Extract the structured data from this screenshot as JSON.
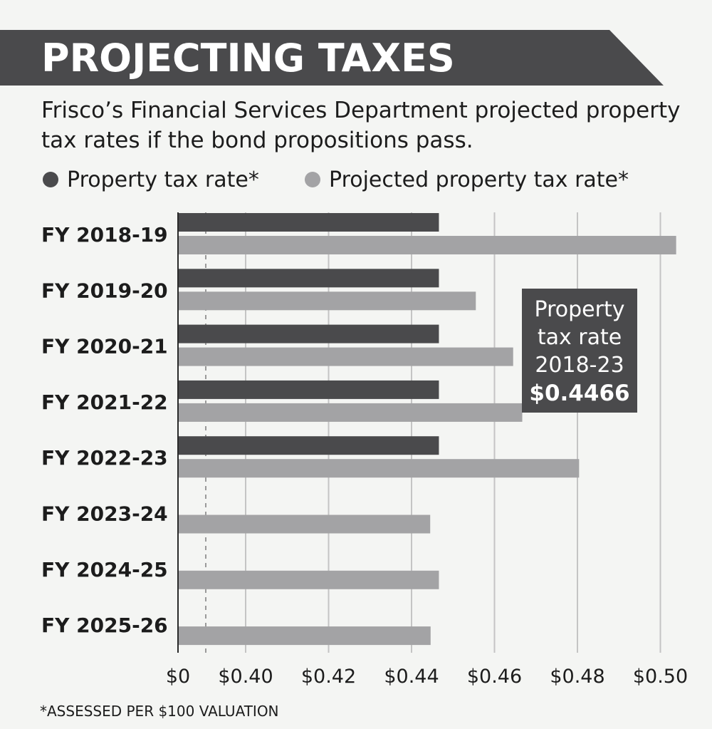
{
  "header": {
    "title": "PROJECTING TAXES",
    "subtitle": "Frisco’s Financial Services Department projected property tax rates if the bond propositions pass."
  },
  "colors": {
    "banner": "#4a4a4c",
    "current_bar": "#4a4a4c",
    "projected_bar": "#a3a3a5",
    "background": "#f4f5f3"
  },
  "legend": [
    {
      "label": "Property tax rate*",
      "color": "#4a4a4c"
    },
    {
      "label": "Projected property tax rate*",
      "color": "#a3a3a5"
    }
  ],
  "callout": {
    "line1": "Property",
    "line2": "tax rate",
    "line3": "2018-23",
    "value": "$0.4466"
  },
  "footnote": "*ASSESSED PER $100 VALUATION",
  "chart_data": {
    "type": "bar",
    "orientation": "horizontal",
    "categories": [
      "FY 2018-19",
      "FY 2019-20",
      "FY 2020-21",
      "FY 2021-22",
      "FY 2022-23",
      "FY 2023-24",
      "FY 2024-25",
      "FY 2025-26"
    ],
    "series": [
      {
        "name": "Property tax rate*",
        "values": [
          0.4466,
          0.4466,
          0.4466,
          0.4466,
          0.4466,
          null,
          null,
          null
        ]
      },
      {
        "name": "Projected property tax rate*",
        "values": [
          0.5038,
          0.4555,
          0.4645,
          0.4667,
          0.4804,
          0.4445,
          0.4466,
          0.4446
        ]
      }
    ],
    "x_tick_labels": [
      "$0",
      "$0.40",
      "$0.42",
      "$0.44",
      "$0.46",
      "$0.48",
      "$0.50"
    ],
    "x_ticks": [
      0,
      0.4,
      0.42,
      0.44,
      0.46,
      0.48,
      0.5
    ],
    "axis_break": true,
    "xlim": [
      0.3933,
      0.5
    ],
    "grid": true,
    "legend_position": "top"
  }
}
